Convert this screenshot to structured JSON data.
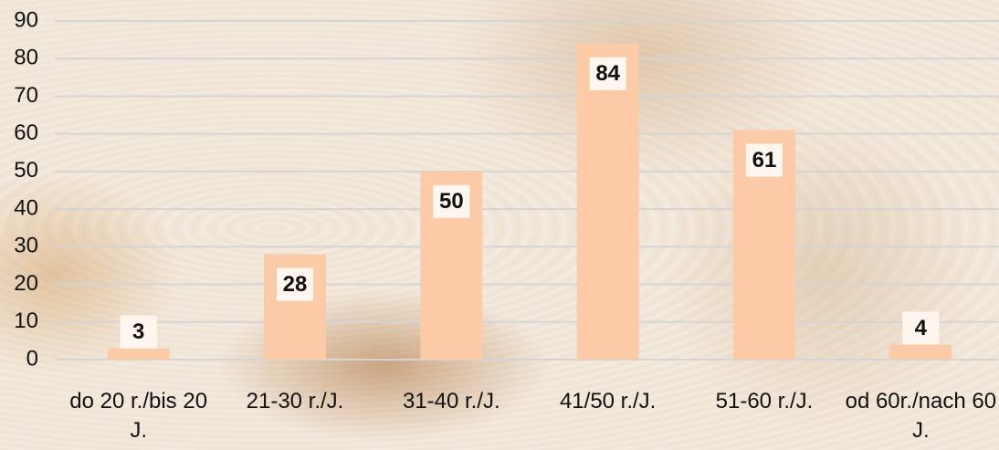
{
  "chart_data": {
    "type": "bar",
    "categories": [
      "do 20 r./bis 20 J.",
      "21-30 r./J.",
      "31-40 r./J.",
      "41/50 r./J.",
      "51-60 r./J.",
      "od 60r./nach 60 J."
    ],
    "values": [
      3,
      28,
      50,
      84,
      61,
      4
    ],
    "color": "#fbcba8",
    "ylim": [
      0,
      90
    ],
    "yticks": [
      0,
      10,
      20,
      30,
      40,
      50,
      60,
      70,
      80,
      90
    ],
    "grid": true
  }
}
